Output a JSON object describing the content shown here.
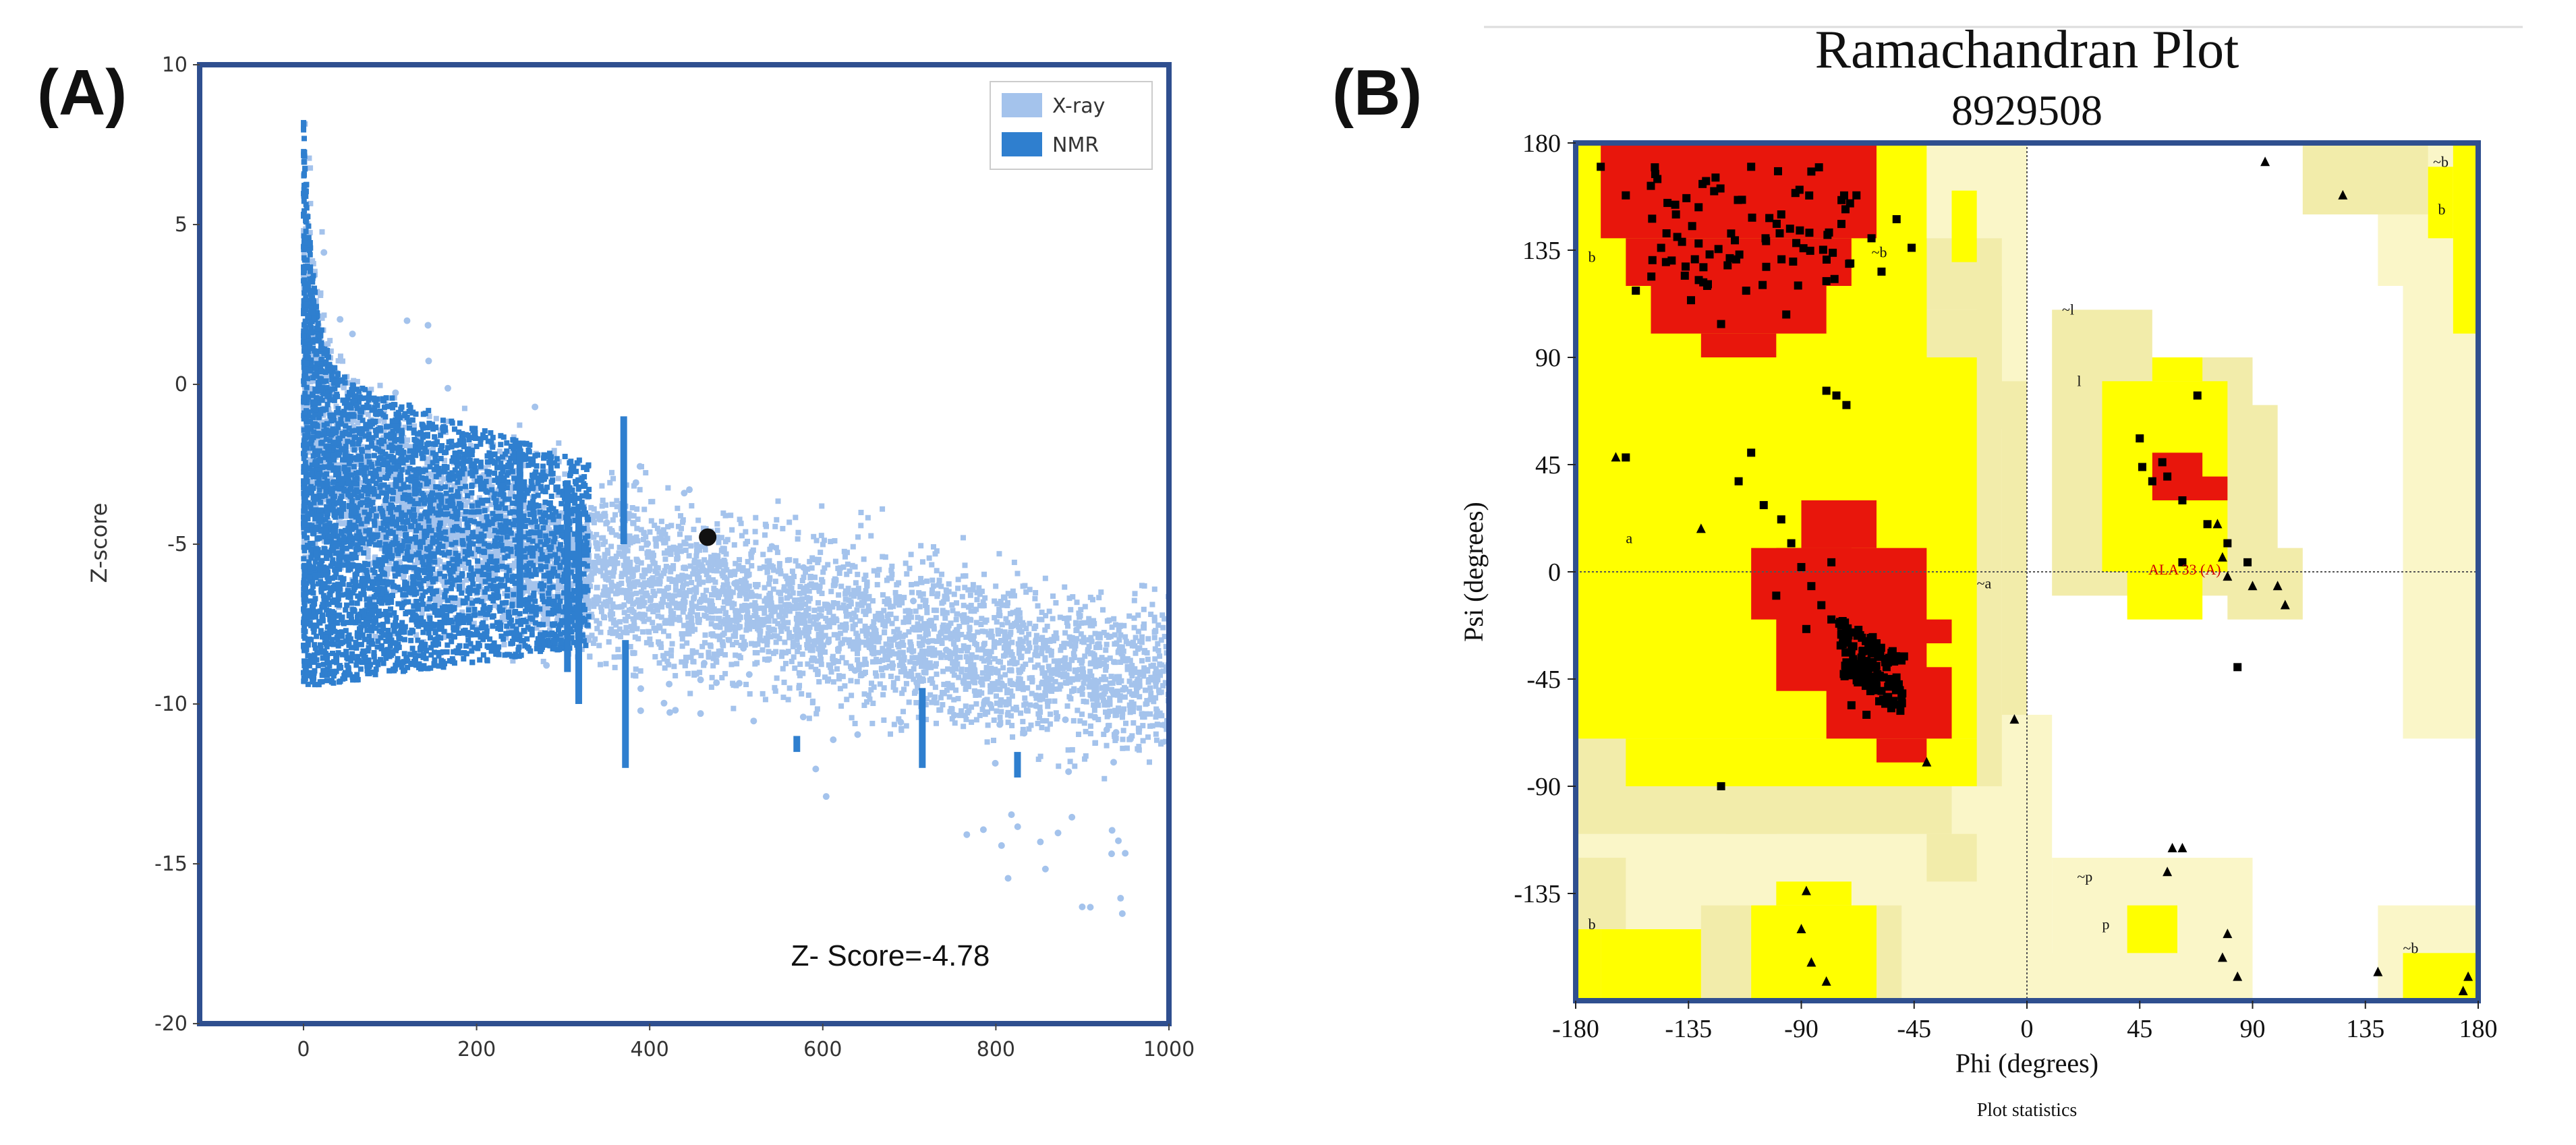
{
  "panels": {
    "a_label": "(A)",
    "b_label": "(B)"
  },
  "chart_data": [
    {
      "type": "scatter",
      "title": "",
      "xlabel": "",
      "ylabel": "Z-score",
      "xlim": [
        -120,
        1000
      ],
      "ylim": [
        -20,
        10
      ],
      "x_ticks": [
        0,
        200,
        400,
        600,
        800,
        1000
      ],
      "y_ticks": [
        -20,
        -15,
        -10,
        -5,
        0,
        5,
        10
      ],
      "series": [
        {
          "name": "X-ray",
          "color": "#a4c3ec",
          "density": "cloud of points spanning residues 0-1000, Z-score roughly -17 to 9"
        },
        {
          "name": "NMR",
          "color": "#2f7fcf",
          "density": "dense band at residues 0-330, Z-score roughly -10 to 8"
        }
      ],
      "highlight_point": {
        "x": 467,
        "y": -4.78,
        "color": "#111111"
      },
      "annotation": "Z- Score=-4.78",
      "legend_position": "top-right"
    },
    {
      "type": "scatter",
      "title": "Ramachandran Plot",
      "subtitle": "8929508",
      "xlabel": "Phi (degrees)",
      "ylabel": "Psi (degrees)",
      "xlim": [
        -180,
        180
      ],
      "ylim": [
        -180,
        180
      ],
      "x_ticks": [
        -180,
        -135,
        -90,
        -45,
        0,
        45,
        90,
        135,
        180
      ],
      "y_ticks": [
        180,
        135,
        90,
        45,
        0,
        -45,
        -90,
        -135
      ],
      "region_labels": [
        "b",
        "b",
        "~b",
        "a",
        "~a",
        "~l",
        "l",
        "~p",
        "p",
        "~b",
        "~b",
        "b"
      ],
      "highlighted_residue": "ALA 33 (A)",
      "footer": "Plot statistics",
      "colors": {
        "core": "#e8160c",
        "allowed": "#ffff00",
        "generous": "#f2ecaa",
        "generous_light": "#faf6c8"
      },
      "residue_points": [
        {
          "phi": -170,
          "psi": 170
        },
        {
          "phi": -160,
          "psi": 158
        },
        {
          "phi": -150,
          "psi": 162
        },
        {
          "phi": -140,
          "psi": 150
        },
        {
          "phi": -128,
          "psi": 164
        },
        {
          "phi": -118,
          "psi": 142
        },
        {
          "phi": -110,
          "psi": 170
        },
        {
          "phi": -104,
          "psi": 128
        },
        {
          "phi": -98,
          "psi": 150
        },
        {
          "phi": -92,
          "psi": 138
        },
        {
          "phi": -86,
          "psi": 168
        },
        {
          "phi": -80,
          "psi": 122
        },
        {
          "phi": -74,
          "psi": 146
        },
        {
          "phi": -68,
          "psi": 158
        },
        {
          "phi": -62,
          "psi": 140
        },
        {
          "phi": -58,
          "psi": 126
        },
        {
          "phi": -52,
          "psi": 148
        },
        {
          "phi": -46,
          "psi": 136
        },
        {
          "phi": -134,
          "psi": 114
        },
        {
          "phi": -122,
          "psi": 104
        },
        {
          "phi": -112,
          "psi": 118
        },
        {
          "phi": -144,
          "psi": 130
        },
        {
          "phi": -156,
          "psi": 118
        },
        {
          "phi": -96,
          "psi": 108
        },
        {
          "phi": -76,
          "psi": 74
        },
        {
          "phi": -72,
          "psi": 70
        },
        {
          "phi": -80,
          "psi": 76
        },
        {
          "phi": -160,
          "psi": 48
        },
        {
          "phi": -110,
          "psi": 50
        },
        {
          "phi": -115,
          "psi": 38
        },
        {
          "phi": -105,
          "psi": 28
        },
        {
          "phi": -98,
          "psi": 22
        },
        {
          "phi": -94,
          "psi": 12
        },
        {
          "phi": -90,
          "psi": 2
        },
        {
          "phi": -86,
          "psi": -6
        },
        {
          "phi": -82,
          "psi": -14
        },
        {
          "phi": -78,
          "psi": -20
        },
        {
          "phi": -74,
          "psi": -26
        },
        {
          "phi": -70,
          "psi": -32
        },
        {
          "phi": -66,
          "psi": -36
        },
        {
          "phi": -64,
          "psi": -40
        },
        {
          "phi": -62,
          "psi": -44
        },
        {
          "phi": -60,
          "psi": -48
        },
        {
          "phi": -58,
          "psi": -50
        },
        {
          "phi": -66,
          "psi": -46
        },
        {
          "phi": -68,
          "psi": -42
        },
        {
          "phi": -72,
          "psi": -38
        },
        {
          "phi": -56,
          "psi": -40
        },
        {
          "phi": -54,
          "psi": -34
        },
        {
          "phi": -60,
          "psi": -30
        },
        {
          "phi": -88,
          "psi": -24
        },
        {
          "phi": -100,
          "psi": -10
        },
        {
          "phi": -78,
          "psi": 4
        },
        {
          "phi": -70,
          "psi": -56
        },
        {
          "phi": -64,
          "psi": -60
        },
        {
          "phi": -50,
          "psi": -52
        },
        {
          "phi": -122,
          "psi": -90
        },
        {
          "phi": 45,
          "psi": 56
        },
        {
          "phi": 46,
          "psi": 44
        },
        {
          "phi": 50,
          "psi": 38
        },
        {
          "phi": 54,
          "psi": 46
        },
        {
          "phi": 56,
          "psi": 40
        },
        {
          "phi": 62,
          "psi": 30
        },
        {
          "phi": 68,
          "psi": 74
        },
        {
          "phi": 72,
          "psi": 20
        },
        {
          "phi": 80,
          "psi": 12
        },
        {
          "phi": 62,
          "psi": 4
        },
        {
          "phi": 84,
          "psi": -40
        },
        {
          "phi": 88,
          "psi": 4
        }
      ],
      "glycine_points": [
        {
          "phi": 95,
          "psi": 172
        },
        {
          "phi": 126,
          "psi": 158
        },
        {
          "phi": -164,
          "psi": 48
        },
        {
          "phi": -130,
          "psi": 18
        },
        {
          "phi": -5,
          "psi": -62
        },
        {
          "phi": -40,
          "psi": -80
        },
        {
          "phi": 90,
          "psi": -6
        },
        {
          "phi": 100,
          "psi": -6
        },
        {
          "phi": 103,
          "psi": -14
        },
        {
          "phi": 78,
          "psi": 6
        },
        {
          "phi": 80,
          "psi": -2
        },
        {
          "phi": 76,
          "psi": 20
        },
        {
          "phi": 58,
          "psi": -116
        },
        {
          "phi": 62,
          "psi": -116
        },
        {
          "phi": 56,
          "psi": -126
        },
        {
          "phi": 80,
          "psi": -152
        },
        {
          "phi": 78,
          "psi": -162
        },
        {
          "phi": 84,
          "psi": -170
        },
        {
          "phi": -90,
          "psi": -150
        },
        {
          "phi": -86,
          "psi": -164
        },
        {
          "phi": -80,
          "psi": -172
        },
        {
          "phi": -88,
          "psi": -134
        },
        {
          "phi": 140,
          "psi": -168
        },
        {
          "phi": 176,
          "psi": -170
        },
        {
          "phi": 174,
          "psi": -176
        }
      ]
    }
  ]
}
